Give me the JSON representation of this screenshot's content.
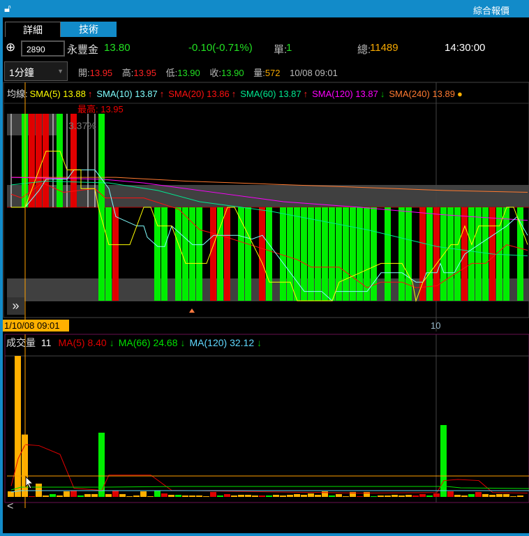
{
  "window": {
    "title": "綜合報價",
    "lock_icon": "unlock-icon"
  },
  "tabs": [
    {
      "label": "詳細",
      "active": true
    },
    {
      "label": "技術",
      "active": false
    }
  ],
  "quote": {
    "code": "2890",
    "name": "永豐金",
    "price": "13.80",
    "change": "-0.10(-0.71%)",
    "single_label": "單:",
    "single": "1",
    "total_label": "總:",
    "total": "11489",
    "time": "14:30:00"
  },
  "period": {
    "selected": "1分鐘"
  },
  "bar_info": {
    "open_label": "開:",
    "open": "13.95",
    "high_label": "高:",
    "high": "13.95",
    "low_label": "低:",
    "low": "13.90",
    "close_label": "收:",
    "close": "13.90",
    "vol_label": "量:",
    "vol": "572",
    "datetime": "10/08 09:01"
  },
  "ma_legend": {
    "title": "均線:",
    "items": [
      {
        "label": "SMA(5) 13.88",
        "color": "#ffff00",
        "arrow": "↑",
        "arrow_color": "#ff2020"
      },
      {
        "label": "SMA(10) 13.87",
        "color": "#80ffff",
        "arrow": "↑",
        "arrow_color": "#ff2020"
      },
      {
        "label": "SMA(20) 13.86",
        "color": "#ff1010",
        "arrow": "↑",
        "arrow_color": "#ff2020"
      },
      {
        "label": "SMA(60) 13.87",
        "color": "#00e890",
        "arrow": "↑",
        "arrow_color": "#ff2020"
      },
      {
        "label": "SMA(120) 13.87",
        "color": "#ff00ff",
        "arrow": "↓",
        "arrow_color": "#00c000"
      },
      {
        "label": "SMA(240) 13.89",
        "color": "#ff7a30",
        "arrow": "●",
        "arrow_color": "#ffb000"
      }
    ]
  },
  "annotations": {
    "max_label": "最高: 13.95",
    "ratio": "3.37%",
    "cursor_time": "1/10/08 09:01",
    "x_tick": "10"
  },
  "volume_legend": {
    "title": "成交量",
    "value": "11",
    "items": [
      {
        "label": "MA(5) 8.40",
        "color": "#e00000",
        "arrow": "↓"
      },
      {
        "label": "MA(66) 24.68",
        "color": "#00e000",
        "arrow": "↓"
      },
      {
        "label": "MA(120) 32.12",
        "color": "#60d8ff",
        "arrow": "↓"
      }
    ]
  },
  "colors": {
    "up": "#e00000",
    "down": "#00ee00",
    "flat_vol": "#ffb000",
    "doji": "#ffffff",
    "accent": "#128bc9"
  },
  "chart_data": {
    "type": "candlestick",
    "price_range": [
      13.85,
      13.95
    ],
    "candles_ohlc": [
      [
        13.9,
        13.95,
        13.9,
        13.9
      ],
      [
        13.9,
        13.9,
        13.9,
        13.9
      ],
      [
        13.95,
        13.95,
        13.9,
        13.9
      ],
      [
        13.9,
        13.95,
        13.9,
        13.95
      ],
      [
        13.9,
        13.95,
        13.9,
        13.95
      ],
      [
        13.9,
        13.95,
        13.9,
        13.95
      ],
      [
        13.9,
        13.95,
        13.9,
        13.9
      ],
      [
        13.95,
        13.95,
        13.9,
        13.9
      ],
      [
        13.9,
        13.95,
        13.9,
        13.9
      ],
      [
        13.9,
        13.95,
        13.9,
        13.95
      ],
      [
        13.9,
        13.9,
        13.9,
        13.9
      ],
      [
        13.9,
        13.95,
        13.9,
        13.9
      ],
      [
        13.9,
        13.95,
        13.9,
        13.9
      ],
      [
        13.95,
        13.95,
        13.85,
        13.85
      ],
      [
        13.9,
        13.9,
        13.85,
        13.85
      ],
      [
        13.85,
        13.9,
        13.85,
        13.9
      ],
      [
        13.9,
        13.9,
        13.9,
        13.9
      ],
      [
        13.9,
        13.9,
        13.9,
        13.9
      ],
      [
        13.9,
        13.9,
        13.9,
        13.9
      ],
      [
        13.9,
        13.9,
        13.9,
        13.9
      ],
      [
        13.9,
        13.9,
        13.9,
        13.9
      ],
      [
        13.9,
        13.9,
        13.85,
        13.85
      ],
      [
        13.9,
        13.9,
        13.85,
        13.85
      ],
      [
        13.9,
        13.9,
        13.9,
        13.9
      ],
      [
        13.9,
        13.9,
        13.85,
        13.85
      ],
      [
        13.9,
        13.9,
        13.85,
        13.85
      ],
      [
        13.9,
        13.9,
        13.85,
        13.85
      ],
      [
        13.9,
        13.9,
        13.85,
        13.85
      ],
      [
        13.9,
        13.9,
        13.9,
        13.9
      ],
      [
        13.85,
        13.9,
        13.85,
        13.9
      ],
      [
        13.9,
        13.9,
        13.85,
        13.85
      ],
      [
        13.85,
        13.9,
        13.85,
        13.9
      ],
      [
        13.9,
        13.9,
        13.9,
        13.9
      ],
      [
        13.9,
        13.9,
        13.85,
        13.85
      ],
      [
        13.9,
        13.9,
        13.85,
        13.85
      ],
      [
        13.9,
        13.9,
        13.9,
        13.9
      ],
      [
        13.85,
        13.9,
        13.85,
        13.9
      ],
      [
        13.9,
        13.9,
        13.85,
        13.85
      ],
      [
        13.9,
        13.9,
        13.9,
        13.9
      ],
      [
        13.9,
        13.9,
        13.85,
        13.85
      ],
      [
        13.9,
        13.9,
        13.85,
        13.85
      ],
      [
        13.9,
        13.9,
        13.85,
        13.85
      ],
      [
        13.9,
        13.9,
        13.85,
        13.85
      ],
      [
        13.9,
        13.9,
        13.85,
        13.85
      ],
      [
        13.9,
        13.9,
        13.85,
        13.85
      ],
      [
        13.9,
        13.9,
        13.85,
        13.85
      ],
      [
        13.9,
        13.9,
        13.85,
        13.85
      ],
      [
        13.9,
        13.9,
        13.85,
        13.85
      ],
      [
        13.9,
        13.9,
        13.85,
        13.85
      ],
      [
        13.9,
        13.9,
        13.85,
        13.85
      ],
      [
        13.9,
        13.9,
        13.85,
        13.85
      ],
      [
        13.9,
        13.9,
        13.85,
        13.85
      ],
      [
        13.9,
        13.9,
        13.85,
        13.85
      ],
      [
        13.9,
        13.9,
        13.9,
        13.9
      ],
      [
        13.9,
        13.9,
        13.85,
        13.85
      ],
      [
        13.9,
        13.9,
        13.9,
        13.9
      ],
      [
        13.9,
        13.9,
        13.85,
        13.85
      ],
      [
        13.9,
        13.9,
        13.85,
        13.85
      ],
      [
        13.9,
        13.9,
        13.9,
        13.9
      ],
      [
        13.85,
        13.9,
        13.85,
        13.9
      ],
      [
        13.9,
        13.9,
        13.85,
        13.85
      ],
      [
        13.85,
        13.9,
        13.85,
        13.9
      ],
      [
        13.9,
        13.9,
        13.85,
        13.85
      ],
      [
        13.9,
        13.9,
        13.85,
        13.85
      ],
      [
        13.9,
        13.9,
        13.85,
        13.85
      ],
      [
        13.85,
        13.9,
        13.85,
        13.9
      ],
      [
        13.9,
        13.9,
        13.85,
        13.85
      ],
      [
        13.9,
        13.9,
        13.85,
        13.85
      ],
      [
        13.9,
        13.9,
        13.85,
        13.85
      ],
      [
        13.85,
        13.9,
        13.85,
        13.9
      ],
      [
        13.9,
        13.9,
        13.85,
        13.85
      ],
      [
        13.9,
        13.9,
        13.85,
        13.85
      ],
      [
        13.9,
        13.9,
        13.9,
        13.9
      ],
      [
        13.9,
        13.9,
        13.85,
        13.85
      ]
    ],
    "ma_series": [
      {
        "name": "SMA(240)",
        "color": "#ff7a30",
        "points": [
          [
            0,
            13.916
          ],
          [
            15,
            13.916
          ],
          [
            25,
            13.914
          ],
          [
            40,
            13.912
          ],
          [
            55,
            13.91
          ],
          [
            62,
            13.909
          ],
          [
            74,
            13.908
          ]
        ]
      },
      {
        "name": "SMA(120)",
        "color": "#ff00ff",
        "points": [
          [
            0,
            13.916
          ],
          [
            13,
            13.915
          ],
          [
            19,
            13.913
          ],
          [
            29,
            13.908
          ],
          [
            39,
            13.903
          ],
          [
            50,
            13.9
          ],
          [
            62,
            13.896
          ],
          [
            74,
            13.893
          ]
        ]
      },
      {
        "name": "SMA(60)",
        "color": "#00e890",
        "points": [
          [
            0,
            13.912
          ],
          [
            5,
            13.914
          ],
          [
            14,
            13.913
          ],
          [
            21,
            13.909
          ],
          [
            27,
            13.903
          ],
          [
            33,
            13.9
          ],
          [
            37,
            13.898
          ],
          [
            51,
            13.888
          ],
          [
            61,
            13.879
          ],
          [
            69,
            13.875
          ],
          [
            74,
            13.874
          ]
        ]
      },
      {
        "name": "SMA(20)",
        "color": "#ff1010",
        "points": [
          [
            0,
            13.907
          ],
          [
            1.5,
            13.905
          ],
          [
            4.5,
            13.913
          ],
          [
            7.5,
            13.908
          ],
          [
            12,
            13.91
          ],
          [
            13.5,
            13.905
          ],
          [
            19,
            13.905
          ],
          [
            24,
            13.899
          ],
          [
            27,
            13.888
          ],
          [
            30,
            13.885
          ],
          [
            41,
            13.872
          ],
          [
            43,
            13.868
          ],
          [
            47,
            13.868
          ],
          [
            51,
            13.857
          ],
          [
            53,
            13.86
          ],
          [
            56,
            13.86
          ],
          [
            58,
            13.857
          ],
          [
            61,
            13.858
          ],
          [
            63,
            13.863
          ],
          [
            66,
            13.87
          ],
          [
            68,
            13.87
          ],
          [
            71,
            13.88
          ],
          [
            74,
            13.877
          ]
        ]
      },
      {
        "name": "SMA(10)",
        "color": "#80ffff",
        "points": [
          [
            0,
            13.9
          ],
          [
            2,
            13.9
          ],
          [
            4,
            13.909
          ],
          [
            5,
            13.915
          ],
          [
            8,
            13.915
          ],
          [
            9,
            13.92
          ],
          [
            12,
            13.92
          ],
          [
            14,
            13.91
          ],
          [
            15,
            13.895
          ],
          [
            18,
            13.89
          ],
          [
            19,
            13.89
          ],
          [
            19.5,
            13.884
          ],
          [
            21,
            13.879
          ],
          [
            22,
            13.879
          ],
          [
            23,
            13.89
          ],
          [
            26,
            13.88
          ],
          [
            27.5,
            13.88
          ],
          [
            29,
            13.885
          ],
          [
            32.5,
            13.885
          ],
          [
            34.5,
            13.883
          ],
          [
            36,
            13.885
          ],
          [
            42,
            13.855
          ],
          [
            44.5,
            13.855
          ],
          [
            46,
            13.85
          ],
          [
            46.5,
            13.855
          ],
          [
            51,
            13.855
          ],
          [
            53,
            13.865
          ],
          [
            56,
            13.865
          ],
          [
            58,
            13.86
          ],
          [
            59,
            13.86
          ],
          [
            59.5,
            13.865
          ],
          [
            61,
            13.865
          ],
          [
            61.5,
            13.87
          ],
          [
            62,
            13.865
          ],
          [
            63.5,
            13.865
          ],
          [
            65,
            13.875
          ],
          [
            69,
            13.885
          ],
          [
            71,
            13.89
          ],
          [
            72.5,
            13.895
          ],
          [
            74,
            13.885
          ]
        ]
      },
      {
        "name": "SMA(5)",
        "color": "#ffff00",
        "points": [
          [
            0,
            13.9
          ],
          [
            2,
            13.9
          ],
          [
            5,
            13.93
          ],
          [
            7,
            13.93
          ],
          [
            8,
            13.92
          ],
          [
            10,
            13.92
          ],
          [
            10,
            13.91
          ],
          [
            12,
            13.91
          ],
          [
            12.5,
            13.9
          ],
          [
            14,
            13.88
          ],
          [
            17,
            13.88
          ],
          [
            19,
            13.9
          ],
          [
            20,
            13.9
          ],
          [
            21,
            13.89
          ],
          [
            23,
            13.89
          ],
          [
            25,
            13.87
          ],
          [
            28,
            13.87
          ],
          [
            31,
            13.9
          ],
          [
            32,
            13.9
          ],
          [
            36,
            13.87
          ],
          [
            37,
            13.86
          ],
          [
            40,
            13.86
          ],
          [
            41,
            13.85
          ],
          [
            46,
            13.85
          ],
          [
            47,
            13.86
          ],
          [
            53,
            13.87
          ],
          [
            56,
            13.87
          ],
          [
            57.5,
            13.86
          ],
          [
            58,
            13.85
          ],
          [
            59,
            13.86
          ],
          [
            61,
            13.87
          ],
          [
            63,
            13.88
          ],
          [
            64,
            13.88
          ],
          [
            65,
            13.89
          ],
          [
            66,
            13.88
          ],
          [
            67,
            13.89
          ],
          [
            70,
            13.89
          ],
          [
            71,
            13.9
          ],
          [
            72,
            13.9
          ],
          [
            74,
            13.88
          ]
        ]
      }
    ],
    "volume": [
      [
        51,
        "f"
      ],
      [
        1293,
        "f"
      ],
      [
        572,
        "f"
      ],
      [
        6,
        "u"
      ],
      [
        122,
        "f"
      ],
      [
        13,
        "f"
      ],
      [
        26,
        "d"
      ],
      [
        13,
        "f"
      ],
      [
        51,
        "f"
      ],
      [
        58,
        "u"
      ],
      [
        13,
        "d"
      ],
      [
        26,
        "f"
      ],
      [
        26,
        "f"
      ],
      [
        589,
        "d"
      ],
      [
        26,
        "f"
      ],
      [
        58,
        "u"
      ],
      [
        26,
        "f"
      ],
      [
        6,
        "f"
      ],
      [
        13,
        "f"
      ],
      [
        51,
        "f"
      ],
      [
        6,
        "f"
      ],
      [
        58,
        "d"
      ],
      [
        32,
        "u"
      ],
      [
        19,
        "f"
      ],
      [
        19,
        "d"
      ],
      [
        13,
        "f"
      ],
      [
        13,
        "f"
      ],
      [
        13,
        "f"
      ],
      [
        6,
        "f"
      ],
      [
        45,
        "u"
      ],
      [
        13,
        "d"
      ],
      [
        26,
        "u"
      ],
      [
        13,
        "f"
      ],
      [
        19,
        "f"
      ],
      [
        19,
        "f"
      ],
      [
        13,
        "f"
      ],
      [
        13,
        "u"
      ],
      [
        13,
        "d"
      ],
      [
        19,
        "f"
      ],
      [
        13,
        "f"
      ],
      [
        19,
        "f"
      ],
      [
        26,
        "f"
      ],
      [
        19,
        "f"
      ],
      [
        32,
        "f"
      ],
      [
        19,
        "f"
      ],
      [
        51,
        "f"
      ],
      [
        13,
        "d"
      ],
      [
        26,
        "f"
      ],
      [
        6,
        "f"
      ],
      [
        45,
        "f"
      ],
      [
        6,
        "u"
      ],
      [
        45,
        "f"
      ],
      [
        6,
        "d"
      ],
      [
        13,
        "f"
      ],
      [
        13,
        "f"
      ],
      [
        19,
        "f"
      ],
      [
        13,
        "f"
      ],
      [
        19,
        "f"
      ],
      [
        13,
        "u"
      ],
      [
        26,
        "u"
      ],
      [
        13,
        "d"
      ],
      [
        32,
        "u"
      ],
      [
        659,
        "d"
      ],
      [
        51,
        "u"
      ],
      [
        19,
        "f"
      ],
      [
        13,
        "f"
      ],
      [
        26,
        "d"
      ],
      [
        45,
        "u"
      ],
      [
        26,
        "f"
      ],
      [
        19,
        "f"
      ],
      [
        26,
        "f"
      ],
      [
        26,
        "f"
      ],
      [
        6,
        "f"
      ],
      [
        13,
        "f"
      ]
    ],
    "volume_ma5": [
      [
        0,
        100
      ],
      [
        1,
        350
      ],
      [
        2,
        480
      ],
      [
        4,
        470
      ],
      [
        7,
        390
      ],
      [
        9,
        80
      ],
      [
        13,
        60
      ],
      [
        14,
        200
      ],
      [
        20,
        200
      ],
      [
        23,
        60
      ],
      [
        50,
        35
      ],
      [
        61,
        40
      ],
      [
        62,
        150
      ],
      [
        64,
        160
      ],
      [
        67,
        150
      ],
      [
        69,
        40
      ],
      [
        74,
        35
      ]
    ]
  }
}
